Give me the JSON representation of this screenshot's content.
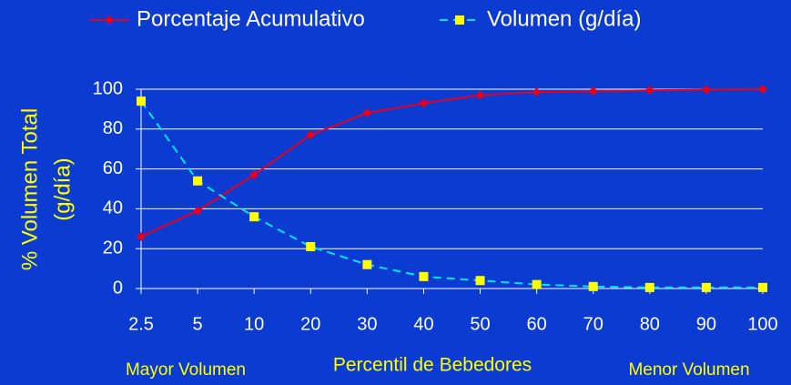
{
  "chart_data": {
    "type": "line",
    "categories": [
      "2.5",
      "5",
      "10",
      "20",
      "30",
      "40",
      "50",
      "60",
      "70",
      "80",
      "90",
      "100"
    ],
    "series": [
      {
        "name": "Porcentaje Acumulativo",
        "color": "#e8001c",
        "marker": "diamond",
        "dash": false,
        "values": [
          26,
          39,
          57,
          77,
          88,
          93,
          97,
          98.5,
          99,
          99.5,
          99.7,
          100
        ]
      },
      {
        "name": "Volumen (g/día)",
        "color": "#00e5ff",
        "marker_color": "#ffff00",
        "marker": "square",
        "dash": true,
        "values": [
          94,
          54,
          36,
          21,
          12,
          6,
          4,
          2,
          1,
          0.5,
          0.5,
          0.5
        ]
      }
    ],
    "ylabel": [
      "% Volumen Total",
      "(g/día)"
    ],
    "xlabel": "Percentil de Bebedores",
    "annotations": [
      "Mayor Volumen",
      "Menor Volumen"
    ],
    "ylim": [
      0,
      100
    ],
    "yticks": [
      0,
      20,
      40,
      60,
      80,
      100
    ],
    "grid": true,
    "legend": "top"
  }
}
